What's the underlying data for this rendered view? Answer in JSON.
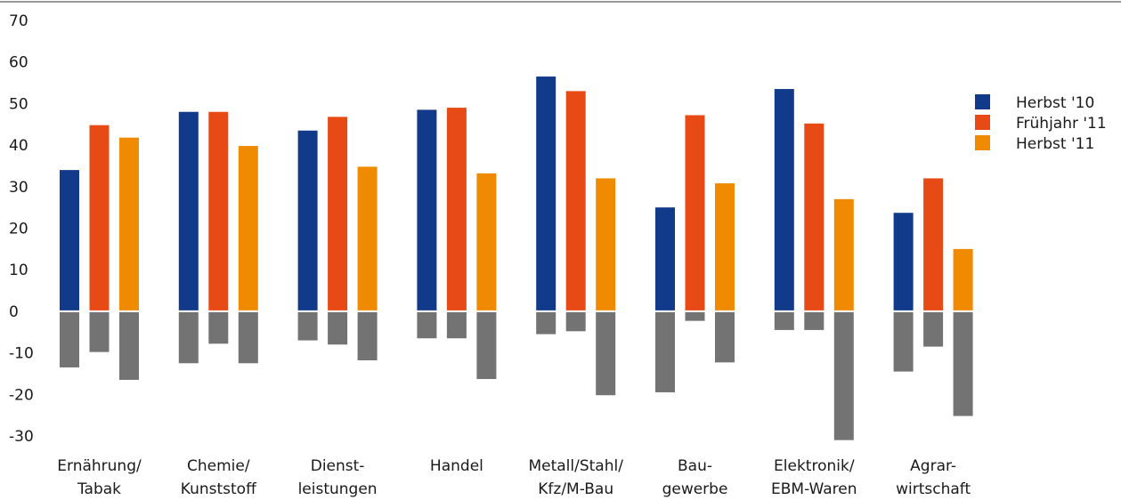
{
  "chart_data": {
    "type": "bar",
    "categories": [
      [
        "Ernährung/",
        "Tabak"
      ],
      [
        "Chemie/",
        "Kunststoff"
      ],
      [
        "Dienst-",
        "leistungen"
      ],
      [
        "Handel"
      ],
      [
        "Metall/Stahl/",
        "Kfz/M-Bau"
      ],
      [
        "Bau-",
        "gewerbe"
      ],
      [
        "Elektronik/",
        "EBM-Waren"
      ],
      [
        "Agrar-",
        "wirtschaft"
      ]
    ],
    "series": [
      {
        "name": "Herbst '10",
        "color": "#123A8A",
        "positive": [
          34,
          48,
          43.5,
          48.5,
          56.5,
          25,
          53.5,
          23.7
        ],
        "negative": [
          -13.5,
          -12.5,
          -7,
          -6.5,
          -5.5,
          -19.5,
          -4.5,
          -14.5
        ]
      },
      {
        "name": "Frühjahr '11",
        "color": "#E84A15",
        "positive": [
          44.8,
          48,
          46.8,
          49,
          53,
          47.2,
          45.2,
          32
        ],
        "negative": [
          -9.8,
          -7.8,
          -8,
          -6.5,
          -4.8,
          -2.3,
          -4.5,
          -8.5
        ]
      },
      {
        "name": "Herbst '11",
        "color": "#F08A00",
        "positive": [
          41.8,
          39.8,
          34.8,
          33.2,
          32,
          30.8,
          27,
          15
        ],
        "negative": [
          -16.5,
          -12.5,
          -11.8,
          -16.3,
          -20.2,
          -12.3,
          -31,
          -25.2
        ]
      }
    ],
    "negative_color": "#737373",
    "ylim": [
      -30,
      70
    ],
    "yticks": [
      70,
      60,
      50,
      40,
      30,
      20,
      10,
      0,
      -10,
      -20,
      -30
    ],
    "legend_position": "right"
  }
}
